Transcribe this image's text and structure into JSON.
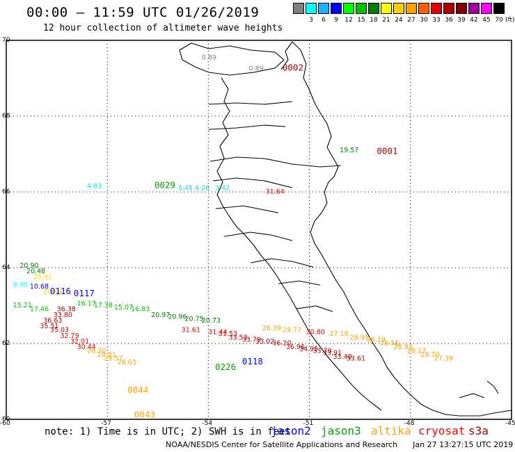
{
  "header": {
    "title": "00:00 – 11:59 UTC 01/26/2019",
    "subtitle": "12 hour collection of altimeter wave heights"
  },
  "scale": {
    "unit": "(ft)",
    "items": [
      {
        "label": "",
        "color": "#808080"
      },
      {
        "label": "3",
        "color": "#00ffff"
      },
      {
        "label": "6",
        "color": "#20b0ff"
      },
      {
        "label": "9",
        "color": "#0000ff"
      },
      {
        "label": "12",
        "color": "#00ff00"
      },
      {
        "label": "15",
        "color": "#00c000"
      },
      {
        "label": "18",
        "color": "#008000"
      },
      {
        "label": "21",
        "color": "#ffff00"
      },
      {
        "label": "24",
        "color": "#ffd000"
      },
      {
        "label": "27",
        "color": "#ffa000"
      },
      {
        "label": "30",
        "color": "#ff6000"
      },
      {
        "label": "33",
        "color": "#e00000"
      },
      {
        "label": "36",
        "color": "#b00000"
      },
      {
        "label": "39",
        "color": "#800000"
      },
      {
        "label": "42",
        "color": "#a000a0"
      },
      {
        "label": "45",
        "color": "#ff00ff"
      },
      {
        "label": "70",
        "color": "#000000"
      }
    ]
  },
  "axes": {
    "lat_ticks": [
      "70",
      "68",
      "66",
      "64",
      "62",
      "60"
    ],
    "lon_ticks": [
      "-60",
      "-57",
      "-54",
      "-51",
      "-48",
      "-45"
    ]
  },
  "chart_data": {
    "type": "scatter",
    "xlabel": "",
    "ylabel": "",
    "xlim": [
      -60,
      -45
    ],
    "ylim": [
      60,
      70
    ],
    "passes": [
      {
        "satellite": "jason2",
        "time": "0116",
        "lon": -58.7,
        "lat": 63.3
      },
      {
        "satellite": "jason2",
        "time": "0117",
        "lon": -58.0,
        "lat": 63.25
      },
      {
        "satellite": "jason3",
        "time": "0029",
        "lon": -55.6,
        "lat": 66.1
      },
      {
        "satellite": "jason3",
        "time": "0226",
        "lon": -53.8,
        "lat": 61.3
      },
      {
        "satellite": "jason2",
        "time": "0118",
        "lon": -53.0,
        "lat": 61.45
      },
      {
        "satellite": "altika",
        "time": "0844",
        "lon": -56.4,
        "lat": 60.7
      },
      {
        "satellite": "altika",
        "time": "0843",
        "lon": -56.2,
        "lat": 60.05
      },
      {
        "satellite": "s3a",
        "time": "0002",
        "lon": -51.8,
        "lat": 69.2
      },
      {
        "satellite": "s3a",
        "time": "0001",
        "lon": -49.0,
        "lat": 67.0
      }
    ],
    "points": [
      {
        "v": "0.89",
        "lon": -54.2,
        "lat": 69.5,
        "c": "#808080"
      },
      {
        "v": "0.89",
        "lon": -52.8,
        "lat": 69.2,
        "c": "#808080"
      },
      {
        "v": "19.57",
        "lon": -50.1,
        "lat": 67.05,
        "c": "#008000"
      },
      {
        "v": "4.83",
        "lon": -57.6,
        "lat": 66.1,
        "c": "#00e0e0"
      },
      {
        "v": "5.45",
        "lon": -54.9,
        "lat": 66.05,
        "c": "#00e0e0"
      },
      {
        "v": "4.26",
        "lon": -54.4,
        "lat": 66.05,
        "c": "#00e0e0"
      },
      {
        "v": "3.42",
        "lon": -53.8,
        "lat": 66.05,
        "c": "#00e0e0"
      },
      {
        "v": "31.64",
        "lon": -52.3,
        "lat": 65.95,
        "c": "#e00000"
      },
      {
        "v": "20.90",
        "lon": -59.6,
        "lat": 64.0,
        "c": "#008000"
      },
      {
        "v": "20.48",
        "lon": -59.4,
        "lat": 63.85,
        "c": "#008000"
      },
      {
        "v": "25.91",
        "lon": -59.2,
        "lat": 63.7,
        "c": "#ffd000"
      },
      {
        "v": "9.00",
        "lon": -59.8,
        "lat": 63.5,
        "c": "#00ffff"
      },
      {
        "v": "10.68",
        "lon": -59.3,
        "lat": 63.45,
        "c": "#0000ff"
      },
      {
        "v": "28.64",
        "lon": -58.9,
        "lat": 63.3,
        "c": "#ffd000"
      },
      {
        "v": "16.17",
        "lon": -57.9,
        "lat": 63.0,
        "c": "#00c000"
      },
      {
        "v": "15.21",
        "lon": -59.8,
        "lat": 62.95,
        "c": "#00c000"
      },
      {
        "v": "17.38",
        "lon": -57.4,
        "lat": 62.95,
        "c": "#00c000"
      },
      {
        "v": "15.07",
        "lon": -56.8,
        "lat": 62.9,
        "c": "#00c000"
      },
      {
        "v": "16.83",
        "lon": -56.3,
        "lat": 62.85,
        "c": "#00c000"
      },
      {
        "v": "17.46",
        "lon": -59.3,
        "lat": 62.85,
        "c": "#00c000"
      },
      {
        "v": "36.38",
        "lon": -58.5,
        "lat": 62.85,
        "c": "#b00000"
      },
      {
        "v": "33.80",
        "lon": -58.6,
        "lat": 62.7,
        "c": "#b00000"
      },
      {
        "v": "36.63",
        "lon": -58.9,
        "lat": 62.55,
        "c": "#b00000"
      },
      {
        "v": "35.51",
        "lon": -59.0,
        "lat": 62.4,
        "c": "#b00000"
      },
      {
        "v": "35.03",
        "lon": -58.7,
        "lat": 62.3,
        "c": "#b00000"
      },
      {
        "v": "32.79",
        "lon": -58.4,
        "lat": 62.15,
        "c": "#e00000"
      },
      {
        "v": "32.01",
        "lon": -58.1,
        "lat": 62.0,
        "c": "#e00000"
      },
      {
        "v": "30.44",
        "lon": -57.9,
        "lat": 61.85,
        "c": "#e00000"
      },
      {
        "v": "28.70",
        "lon": -57.6,
        "lat": 61.75,
        "c": "#ffa000"
      },
      {
        "v": "28.01",
        "lon": -57.3,
        "lat": 61.65,
        "c": "#ffa000"
      },
      {
        "v": "29.57",
        "lon": -57.1,
        "lat": 61.55,
        "c": "#ffa000"
      },
      {
        "v": "28.03",
        "lon": -56.7,
        "lat": 61.45,
        "c": "#ffa000"
      },
      {
        "v": "20.97",
        "lon": -55.7,
        "lat": 62.7,
        "c": "#008000"
      },
      {
        "v": "20.96",
        "lon": -55.2,
        "lat": 62.65,
        "c": "#008000"
      },
      {
        "v": "20.75",
        "lon": -54.7,
        "lat": 62.6,
        "c": "#008000"
      },
      {
        "v": "20.73",
        "lon": -54.2,
        "lat": 62.55,
        "c": "#008000"
      },
      {
        "v": "31.61",
        "lon": -54.8,
        "lat": 62.3,
        "c": "#e00000"
      },
      {
        "v": "31.44",
        "lon": -54.0,
        "lat": 62.25,
        "c": "#e00000"
      },
      {
        "v": "31.53",
        "lon": -53.7,
        "lat": 62.2,
        "c": "#e00000"
      },
      {
        "v": "33.53",
        "lon": -53.4,
        "lat": 62.1,
        "c": "#b00000"
      },
      {
        "v": "33.79",
        "lon": -53.0,
        "lat": 62.05,
        "c": "#b00000"
      },
      {
        "v": "33.02",
        "lon": -52.6,
        "lat": 62.0,
        "c": "#b00000"
      },
      {
        "v": "36.20",
        "lon": -52.1,
        "lat": 61.95,
        "c": "#b00000"
      },
      {
        "v": "36.96",
        "lon": -51.7,
        "lat": 61.85,
        "c": "#b00000"
      },
      {
        "v": "34.95",
        "lon": -51.3,
        "lat": 61.8,
        "c": "#b00000"
      },
      {
        "v": "33.70",
        "lon": -50.9,
        "lat": 61.75,
        "c": "#b00000"
      },
      {
        "v": "33.91",
        "lon": -50.6,
        "lat": 61.7,
        "c": "#b00000"
      },
      {
        "v": "33.40",
        "lon": -50.3,
        "lat": 61.6,
        "c": "#b00000"
      },
      {
        "v": "33.61",
        "lon": -49.9,
        "lat": 61.55,
        "c": "#b00000"
      },
      {
        "v": "26.39",
        "lon": -52.4,
        "lat": 62.35,
        "c": "#ffa000"
      },
      {
        "v": "29.77",
        "lon": -51.8,
        "lat": 62.3,
        "c": "#ffa000"
      },
      {
        "v": "30.80",
        "lon": -51.1,
        "lat": 62.25,
        "c": "#e00000"
      },
      {
        "v": "27.16",
        "lon": -50.4,
        "lat": 62.2,
        "c": "#ffa000"
      },
      {
        "v": "28.95",
        "lon": -49.8,
        "lat": 62.1,
        "c": "#ffa000"
      },
      {
        "v": "28.19",
        "lon": -49.3,
        "lat": 62.05,
        "c": "#ffa000"
      },
      {
        "v": "28.56",
        "lon": -48.9,
        "lat": 61.95,
        "c": "#ffa000"
      },
      {
        "v": "28.93",
        "lon": -48.5,
        "lat": 61.85,
        "c": "#ffa000"
      },
      {
        "v": "28.17",
        "lon": -48.1,
        "lat": 61.75,
        "c": "#ffa000"
      },
      {
        "v": "28.70",
        "lon": -47.7,
        "lat": 61.65,
        "c": "#ffa000"
      },
      {
        "v": "27.39",
        "lon": -47.3,
        "lat": 61.55,
        "c": "#ffa000"
      }
    ]
  },
  "footer": {
    "note": "note: 1) Time is in UTC; 2) SWH is in feet",
    "satellites": [
      {
        "name": "jason2",
        "color": "#0000ff"
      },
      {
        "name": "jason3",
        "color": "#00a000"
      },
      {
        "name": "altika",
        "color": "#ffa000"
      },
      {
        "name": "cryosat",
        "color": "#ff0000"
      },
      {
        "name": "s3a",
        "color": "#a00000"
      }
    ],
    "credit": "NOAA/NESDIS Center for Satellite Applications and Research",
    "timestamp": "Jan 27 13:27:15 UTC 2019"
  }
}
